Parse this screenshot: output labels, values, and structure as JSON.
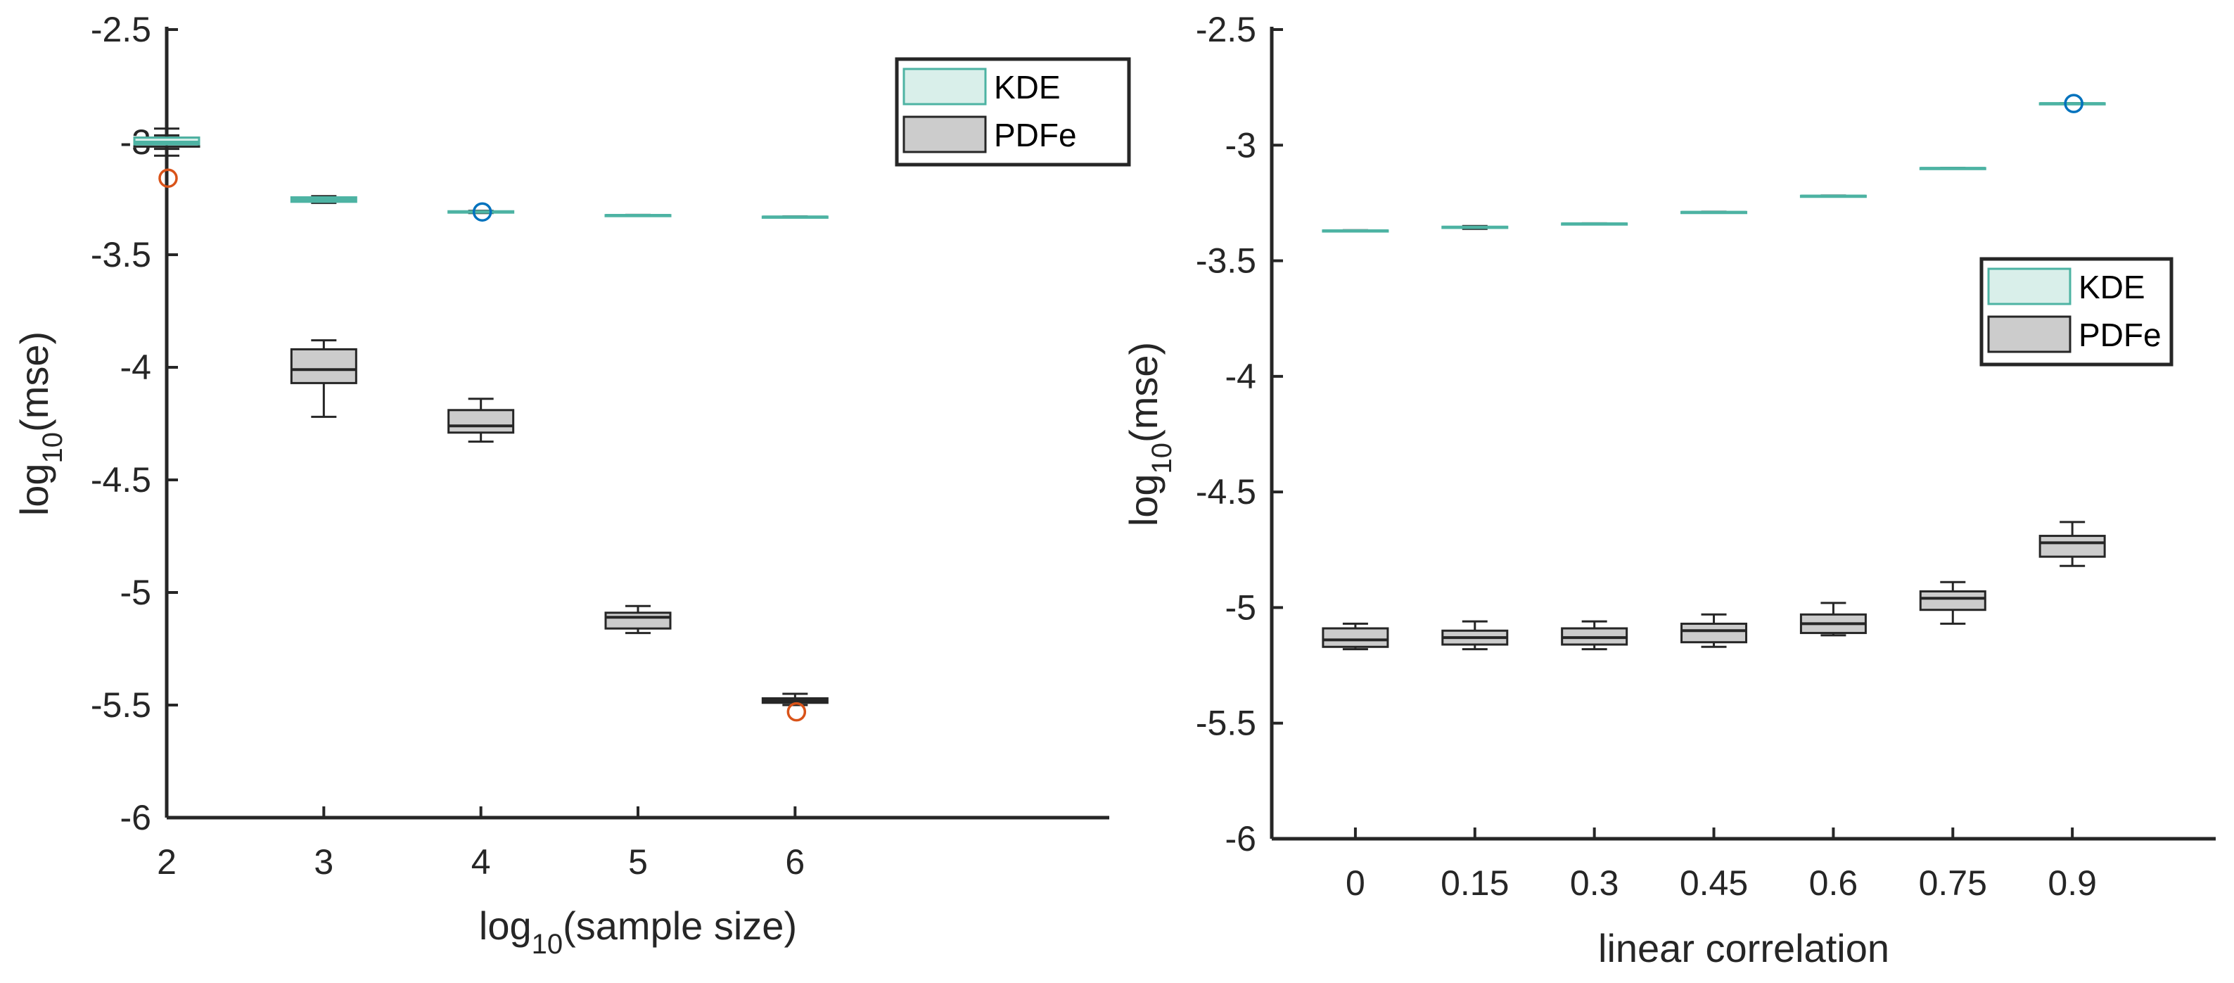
{
  "colors": {
    "kde_stroke": "#4db3a3",
    "kde_fill": "#d9efea",
    "pdfe_stroke": "#262626",
    "pdfe_fill": "#cccccc",
    "axis": "#262626",
    "outlier_kde": "#0072bd",
    "outlier_pdfe": "#d95319"
  },
  "chart_data": [
    {
      "type": "box",
      "title": "",
      "xlabel": {
        "base": "log",
        "sub": "10",
        "rest": "(sample size)"
      },
      "ylabel": {
        "base": "log",
        "sub": "10",
        "rest": "(mse)"
      },
      "ylim": [
        -6,
        -2.5
      ],
      "yticks": [
        "-2.5",
        "-3",
        "-3.5",
        "-4",
        "-4.5",
        "-5",
        "-5.5",
        "-6"
      ],
      "categories": [
        "2",
        "3",
        "4",
        "5",
        "6"
      ],
      "legend": {
        "position": "top-right",
        "entries": [
          "KDE",
          "PDFe"
        ]
      },
      "series": [
        {
          "name": "KDE",
          "boxes": [
            {
              "min": -3.03,
              "q1": -3.01,
              "median": -3.0,
              "q3": -2.98,
              "max": -2.97,
              "outliers": []
            },
            {
              "min": -3.27,
              "q1": -3.265,
              "median": -3.255,
              "q3": -3.245,
              "max": -3.24,
              "outliers": []
            },
            {
              "min": -3.315,
              "q1": -3.313,
              "median": -3.31,
              "q3": -3.307,
              "max": -3.305,
              "outliers": [
                -3.31
              ]
            },
            {
              "min": -3.327,
              "q1": -3.326,
              "median": -3.325,
              "q3": -3.324,
              "max": -3.323,
              "outliers": []
            },
            {
              "min": -3.334,
              "q1": -3.333,
              "median": -3.332,
              "q3": -3.331,
              "max": -3.33,
              "outliers": []
            }
          ]
        },
        {
          "name": "PDFe",
          "boxes": [
            {
              "min": -3.06,
              "q1": -3.02,
              "median": -3.0,
              "q3": -2.98,
              "max": -2.94,
              "outliers": [
                -3.16
              ]
            },
            {
              "min": -4.22,
              "q1": -4.07,
              "median": -4.01,
              "q3": -3.92,
              "max": -3.88,
              "outliers": []
            },
            {
              "min": -4.33,
              "q1": -4.29,
              "median": -4.26,
              "q3": -4.19,
              "max": -4.14,
              "outliers": []
            },
            {
              "min": -5.18,
              "q1": -5.16,
              "median": -5.11,
              "q3": -5.09,
              "max": -5.06,
              "outliers": []
            },
            {
              "min": -5.5,
              "q1": -5.49,
              "median": -5.48,
              "q3": -5.47,
              "max": -5.45,
              "outliers": [
                -5.53
              ]
            }
          ]
        }
      ]
    },
    {
      "type": "box",
      "title": "",
      "xlabel": {
        "base": "linear correlation",
        "sub": "",
        "rest": ""
      },
      "ylabel": {
        "base": "log",
        "sub": "10",
        "rest": "(mse)"
      },
      "ylim": [
        -6,
        -2.5
      ],
      "yticks": [
        "-2.5",
        "-3",
        "-3.5",
        "-4",
        "-4.5",
        "-5",
        "-5.5",
        "-6"
      ],
      "categories": [
        "0",
        "0.15",
        "0.3",
        "0.45",
        "0.6",
        "0.75",
        "0.9"
      ],
      "legend": {
        "position": "upper-right",
        "entries": [
          "KDE",
          "PDFe"
        ]
      },
      "series": [
        {
          "name": "KDE",
          "boxes": [
            {
              "min": -3.372,
              "q1": -3.371,
              "median": -3.37,
              "q3": -3.369,
              "max": -3.368,
              "outliers": []
            },
            {
              "min": -3.362,
              "q1": -3.358,
              "median": -3.355,
              "q3": -3.353,
              "max": -3.35,
              "outliers": []
            },
            {
              "min": -3.342,
              "q1": -3.341,
              "median": -3.34,
              "q3": -3.339,
              "max": -3.338,
              "outliers": []
            },
            {
              "min": -3.292,
              "q1": -3.291,
              "median": -3.29,
              "q3": -3.289,
              "max": -3.288,
              "outliers": []
            },
            {
              "min": -3.222,
              "q1": -3.221,
              "median": -3.22,
              "q3": -3.219,
              "max": -3.218,
              "outliers": []
            },
            {
              "min": -3.102,
              "q1": -3.101,
              "median": -3.1,
              "q3": -3.099,
              "max": -3.098,
              "outliers": []
            },
            {
              "min": -2.822,
              "q1": -2.821,
              "median": -2.82,
              "q3": -2.819,
              "max": -2.818,
              "outliers": [
                -2.82
              ]
            }
          ]
        },
        {
          "name": "PDFe",
          "boxes": [
            {
              "min": -5.18,
              "q1": -5.17,
              "median": -5.14,
              "q3": -5.09,
              "max": -5.07,
              "outliers": []
            },
            {
              "min": -5.18,
              "q1": -5.16,
              "median": -5.13,
              "q3": -5.1,
              "max": -5.06,
              "outliers": []
            },
            {
              "min": -5.18,
              "q1": -5.16,
              "median": -5.13,
              "q3": -5.09,
              "max": -5.06,
              "outliers": []
            },
            {
              "min": -5.17,
              "q1": -5.15,
              "median": -5.1,
              "q3": -5.07,
              "max": -5.03,
              "outliers": []
            },
            {
              "min": -5.12,
              "q1": -5.11,
              "median": -5.07,
              "q3": -5.03,
              "max": -4.98,
              "outliers": []
            },
            {
              "min": -5.07,
              "q1": -5.01,
              "median": -4.96,
              "q3": -4.93,
              "max": -4.89,
              "outliers": []
            },
            {
              "min": -4.82,
              "q1": -4.78,
              "median": -4.72,
              "q3": -4.69,
              "max": -4.63,
              "outliers": []
            }
          ]
        }
      ]
    }
  ]
}
